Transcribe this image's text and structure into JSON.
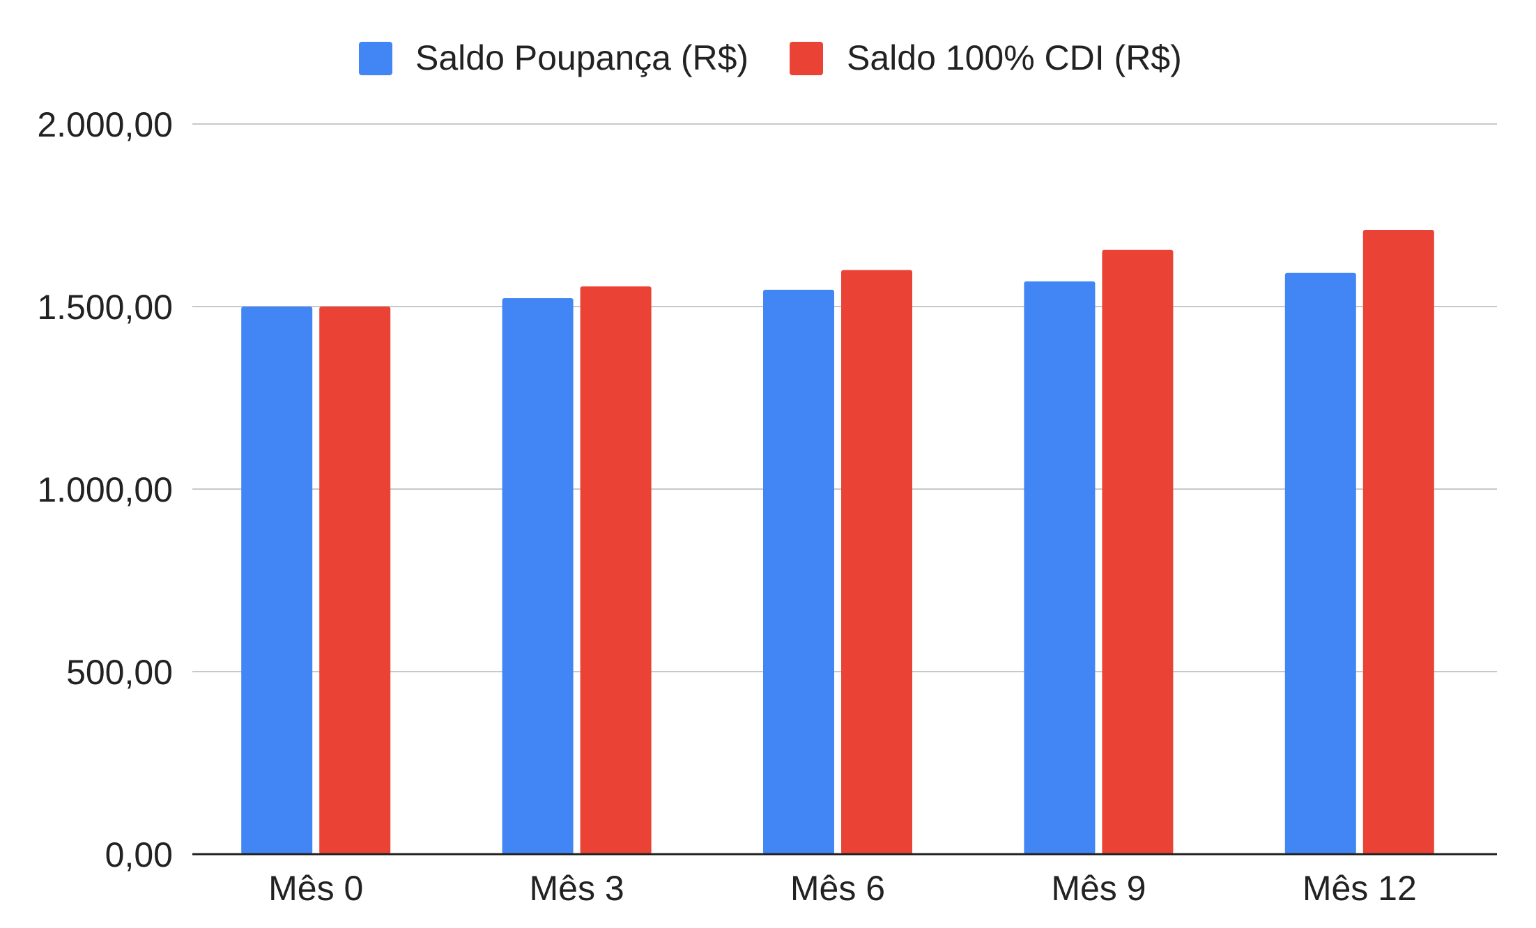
{
  "chart_data": {
    "type": "bar",
    "title": "",
    "xlabel": "",
    "ylabel": "",
    "categories": [
      "Mês 0",
      "Mês 3",
      "Mês 6",
      "Mês 9",
      "Mês 12"
    ],
    "series": [
      {
        "name": "Saldo Poupança (R$)",
        "color": "#4285F4",
        "values": [
          1500,
          1523,
          1546,
          1569,
          1592
        ]
      },
      {
        "name": "Saldo 100% CDI (R$)",
        "color": "#EA4335",
        "values": [
          1500,
          1555,
          1600,
          1655,
          1710
        ]
      }
    ],
    "ylim": [
      0,
      2000
    ],
    "yticks": [
      0,
      500,
      1000,
      1500,
      2000
    ],
    "ytick_labels": [
      "0,00",
      "500,00",
      "1.000,00",
      "1.500,00",
      "2.000,00"
    ],
    "grid": true,
    "legend_position": "top-center"
  }
}
